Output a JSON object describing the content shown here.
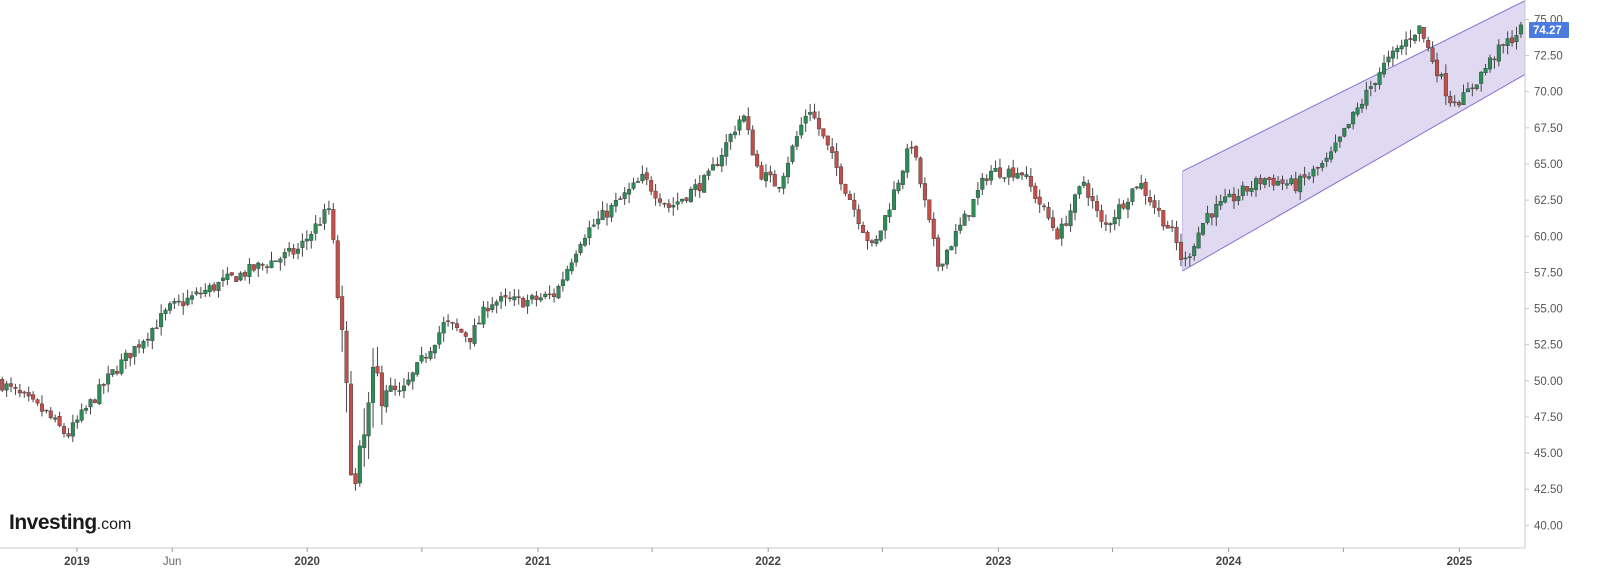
{
  "brand": {
    "logo_main": "Investing",
    "logo_suffix": ".com"
  },
  "colors": {
    "up": "#2e8b57",
    "down": "#c0504d",
    "wick": "#444444",
    "channel_fill": "#d9d3ee",
    "channel_line": "#8a6fcf",
    "price_tag": "#4c7be0",
    "axis": "#c8c8c8"
  },
  "last_price_label": "74.27",
  "chart_data": {
    "type": "candlestick",
    "title": "",
    "xlabel": "",
    "ylabel": "",
    "ylim": [
      38.5,
      76.0
    ],
    "xlim": [
      "2018-09-01",
      "2025-04-15"
    ],
    "grid": false,
    "y_ticks": [
      40,
      42.5,
      45,
      47.5,
      50,
      52.5,
      55,
      57.5,
      60,
      62.5,
      65,
      67.5,
      70,
      72.5,
      75
    ],
    "y_tick_labels": [
      "40.00",
      "42.50",
      "45.00",
      "47.50",
      "50.00",
      "52.50",
      "55.00",
      "57.50",
      "60.00",
      "62.50",
      "65.00",
      "67.50",
      "70.00",
      "72.50",
      "75.00"
    ],
    "x_ticks": [
      {
        "date": "2019-01-01",
        "label": "2019",
        "major": true
      },
      {
        "date": "2019-06-01",
        "label": "Jun",
        "major": false
      },
      {
        "date": "2020-01-01",
        "label": "2020",
        "major": true
      },
      {
        "date": "2020-07-01",
        "label": "",
        "major": false
      },
      {
        "date": "2021-01-01",
        "label": "2021",
        "major": true
      },
      {
        "date": "2021-07-01",
        "label": "",
        "major": false
      },
      {
        "date": "2022-01-01",
        "label": "2022",
        "major": true
      },
      {
        "date": "2022-07-01",
        "label": "",
        "major": false
      },
      {
        "date": "2023-01-01",
        "label": "2023",
        "major": true
      },
      {
        "date": "2023-07-01",
        "label": "",
        "major": false
      },
      {
        "date": "2024-01-01",
        "label": "2024",
        "major": true
      },
      {
        "date": "2024-07-01",
        "label": "",
        "major": false
      },
      {
        "date": "2025-01-01",
        "label": "2025",
        "major": true
      }
    ],
    "channel": {
      "start_date": "2023-10-20",
      "end_date": "2025-04-15",
      "upper_start": 64.5,
      "upper_end": 76.3,
      "lower_start": 57.6,
      "lower_end": 71.2
    },
    "key_points": [
      [
        "2018-09-01",
        50.0
      ],
      [
        "2018-11-15",
        47.8
      ],
      [
        "2018-12-20",
        46.2
      ],
      [
        "2019-03-01",
        50.5
      ],
      [
        "2019-06-01",
        55.0
      ],
      [
        "2019-09-01",
        57.0
      ],
      [
        "2019-12-20",
        59.0
      ],
      [
        "2020-02-10",
        62.0
      ],
      [
        "2020-03-20",
        42.0
      ],
      [
        "2020-04-20",
        50.0
      ],
      [
        "2020-06-01",
        49.0
      ],
      [
        "2020-08-10",
        54.0
      ],
      [
        "2020-09-20",
        53.0
      ],
      [
        "2020-10-20",
        55.5
      ],
      [
        "2020-12-20",
        55.5
      ],
      [
        "2021-02-01",
        56.0
      ],
      [
        "2021-03-15",
        60.0
      ],
      [
        "2021-04-20",
        61.5
      ],
      [
        "2021-06-20",
        64.0
      ],
      [
        "2021-08-01",
        62.0
      ],
      [
        "2021-10-01",
        64.0
      ],
      [
        "2021-11-25",
        68.5
      ],
      [
        "2021-12-20",
        64.5
      ],
      [
        "2022-01-20",
        63.5
      ],
      [
        "2022-03-10",
        69.0
      ],
      [
        "2022-04-20",
        65.0
      ],
      [
        "2022-06-20",
        59.0
      ],
      [
        "2022-08-20",
        66.5
      ],
      [
        "2022-10-01",
        58.0
      ],
      [
        "2022-11-10",
        61.0
      ],
      [
        "2022-12-20",
        64.5
      ],
      [
        "2023-02-10",
        64.5
      ],
      [
        "2023-04-10",
        60.0
      ],
      [
        "2023-05-20",
        63.8
      ],
      [
        "2023-06-20",
        60.5
      ],
      [
        "2023-08-15",
        63.8
      ],
      [
        "2023-10-10",
        60.0
      ],
      [
        "2023-10-25",
        58.0
      ],
      [
        "2023-12-01",
        61.5
      ],
      [
        "2024-03-01",
        64.0
      ],
      [
        "2024-04-20",
        63.5
      ],
      [
        "2024-06-10",
        65.2
      ],
      [
        "2024-09-01",
        71.5
      ],
      [
        "2024-11-01",
        74.5
      ],
      [
        "2024-12-20",
        69.5
      ],
      [
        "2025-01-10",
        69.5
      ],
      [
        "2025-03-01",
        72.5
      ],
      [
        "2025-04-10",
        74.27
      ]
    ]
  }
}
